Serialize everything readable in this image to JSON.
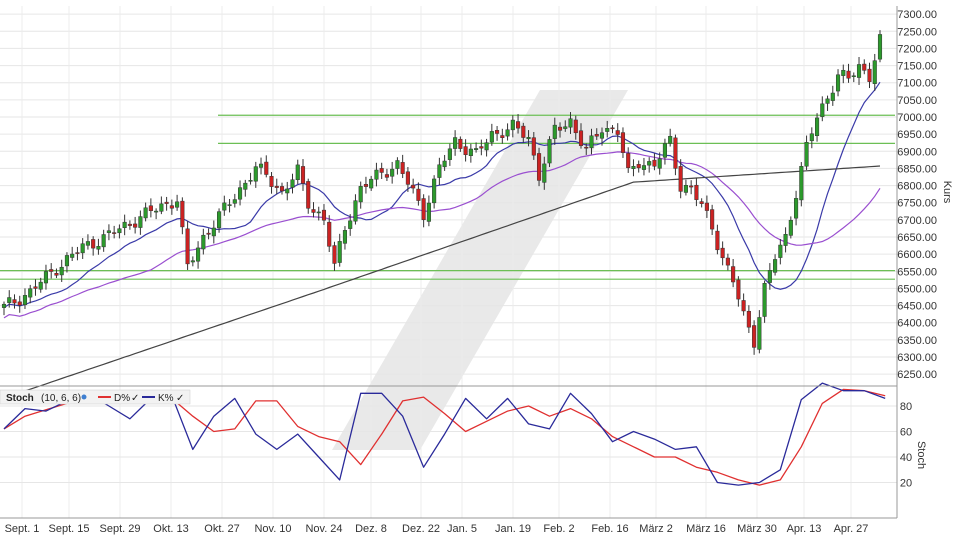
{
  "chart_data": [
    {
      "type": "candlestick",
      "ylabel": "Kurs",
      "ylim": [
        6200,
        7330
      ],
      "yticks": [
        6250,
        6300,
        6350,
        6400,
        6450,
        6500,
        6550,
        6600,
        6650,
        6700,
        6750,
        6800,
        6850,
        6900,
        6950,
        7000,
        7050,
        7100,
        7150,
        7200,
        7250,
        7300
      ],
      "ytick_labels": [
        "6250.00",
        "6300.00",
        "6350.00",
        "6400.00",
        "6450.00",
        "6500.00",
        "6550.00",
        "6600.00",
        "6650.00",
        "6700.00",
        "6750.00",
        "6800.00",
        "6850.00",
        "6900.00",
        "6950.00",
        "7000.00",
        "7050.00",
        "7100.00",
        "7150.00",
        "7200.00",
        "7250.00",
        "7300.00"
      ],
      "xlabels": [
        "Sept. 1",
        "Sept. 15",
        "Sept. 29",
        "Okt. 13",
        "Okt. 27",
        "Nov. 10",
        "Nov. 24",
        "Dez. 8",
        "Dez. 22",
        "Jan. 5",
        "Jan. 19",
        "Feb. 2",
        "Feb. 16",
        "März 2",
        "März 16",
        "März 30",
        "Apr. 13",
        "Apr. 27"
      ],
      "horizontal_lines": [
        7005,
        6923,
        6552,
        6527
      ],
      "close_keypoints": [
        [
          0,
          6445
        ],
        [
          5,
          6490
        ],
        [
          10,
          6560
        ],
        [
          15,
          6620
        ],
        [
          20,
          6655
        ],
        [
          25,
          6700
        ],
        [
          30,
          6740
        ],
        [
          33,
          6760
        ],
        [
          35,
          6560
        ],
        [
          38,
          6650
        ],
        [
          42,
          6730
        ],
        [
          46,
          6810
        ],
        [
          48,
          6850
        ],
        [
          50,
          6830
        ],
        [
          53,
          6780
        ],
        [
          56,
          6840
        ],
        [
          58,
          6750
        ],
        [
          61,
          6700
        ],
        [
          63,
          6560
        ],
        [
          65,
          6680
        ],
        [
          68,
          6790
        ],
        [
          72,
          6840
        ],
        [
          75,
          6860
        ],
        [
          78,
          6780
        ],
        [
          80,
          6720
        ],
        [
          83,
          6850
        ],
        [
          86,
          6930
        ],
        [
          90,
          6890
        ],
        [
          93,
          6950
        ],
        [
          97,
          6970
        ],
        [
          100,
          6940
        ],
        [
          102,
          6830
        ],
        [
          105,
          6960
        ],
        [
          108,
          6990
        ],
        [
          111,
          6900
        ],
        [
          114,
          6970
        ],
        [
          117,
          6960
        ],
        [
          119,
          6830
        ],
        [
          121,
          6870
        ],
        [
          124,
          6860
        ],
        [
          127,
          6930
        ],
        [
          129,
          6800
        ],
        [
          131,
          6790
        ],
        [
          133,
          6740
        ],
        [
          135,
          6680
        ],
        [
          137,
          6590
        ],
        [
          139,
          6520
        ],
        [
          141,
          6420
        ],
        [
          143,
          6350
        ],
        [
          145,
          6500
        ],
        [
          147,
          6590
        ],
        [
          149,
          6650
        ],
        [
          151,
          6780
        ],
        [
          153,
          6910
        ],
        [
          155,
          7000
        ],
        [
          157,
          7060
        ],
        [
          159,
          7120
        ],
        [
          161,
          7110
        ],
        [
          163,
          7150
        ],
        [
          165,
          7120
        ],
        [
          167,
          7220
        ]
      ],
      "moving_averages": [
        {
          "color": "#3a3aa8",
          "period": 20
        },
        {
          "color": "#9a4fd0",
          "period": 50
        },
        {
          "color": "#444444",
          "period": 200
        }
      ],
      "watermark": "slash-logo"
    },
    {
      "type": "line",
      "ylabel": "Stoch",
      "ylim": [
        0,
        100
      ],
      "yticks": [
        20,
        40,
        60,
        80
      ],
      "legend": [
        {
          "label": "Stoch",
          "bold": true
        },
        {
          "label": "(10, 6, 6)"
        },
        {
          "label": "D%",
          "color": "#e03030"
        },
        {
          "label": "K%",
          "color": "#2a2a9a"
        }
      ],
      "series": [
        {
          "name": "D%",
          "color": "#e03030",
          "values": [
            [
              0,
              62
            ],
            [
              4,
              72
            ],
            [
              8,
              77
            ],
            [
              12,
              82
            ],
            [
              16,
              88
            ],
            [
              20,
              92
            ],
            [
              24,
              84
            ],
            [
              28,
              84
            ],
            [
              32,
              86
            ],
            [
              36,
              72
            ],
            [
              40,
              60
            ],
            [
              44,
              62
            ],
            [
              48,
              84
            ],
            [
              52,
              84
            ],
            [
              56,
              64
            ],
            [
              60,
              56
            ],
            [
              64,
              52
            ],
            [
              68,
              34
            ],
            [
              72,
              58
            ],
            [
              76,
              84
            ],
            [
              80,
              87
            ],
            [
              84,
              74
            ],
            [
              88,
              60
            ],
            [
              92,
              68
            ],
            [
              96,
              76
            ],
            [
              100,
              80
            ],
            [
              104,
              72
            ],
            [
              108,
              78
            ],
            [
              112,
              70
            ],
            [
              116,
              56
            ],
            [
              120,
              48
            ],
            [
              124,
              40
            ],
            [
              128,
              40
            ],
            [
              132,
              32
            ],
            [
              136,
              28
            ],
            [
              140,
              22
            ],
            [
              144,
              18
            ],
            [
              148,
              22
            ],
            [
              152,
              48
            ],
            [
              156,
              82
            ],
            [
              160,
              93
            ],
            [
              164,
              92
            ],
            [
              168,
              88
            ]
          ]
        },
        {
          "name": "K%",
          "color": "#2a2a9a",
          "values": [
            [
              0,
              62
            ],
            [
              4,
              78
            ],
            [
              8,
              76
            ],
            [
              12,
              84
            ],
            [
              16,
              90
            ],
            [
              20,
              80
            ],
            [
              24,
              70
            ],
            [
              28,
              86
            ],
            [
              32,
              88
            ],
            [
              36,
              46
            ],
            [
              40,
              72
            ],
            [
              44,
              86
            ],
            [
              48,
              58
            ],
            [
              52,
              46
            ],
            [
              56,
              58
            ],
            [
              60,
              40
            ],
            [
              64,
              22
            ],
            [
              68,
              90
            ],
            [
              72,
              90
            ],
            [
              76,
              72
            ],
            [
              80,
              32
            ],
            [
              84,
              58
            ],
            [
              88,
              86
            ],
            [
              92,
              70
            ],
            [
              96,
              86
            ],
            [
              100,
              66
            ],
            [
              104,
              62
            ],
            [
              108,
              90
            ],
            [
              112,
              74
            ],
            [
              116,
              52
            ],
            [
              120,
              60
            ],
            [
              124,
              54
            ],
            [
              128,
              46
            ],
            [
              132,
              48
            ],
            [
              136,
              20
            ],
            [
              140,
              18
            ],
            [
              144,
              20
            ],
            [
              148,
              30
            ],
            [
              152,
              85
            ],
            [
              156,
              98
            ],
            [
              160,
              92
            ],
            [
              164,
              92
            ],
            [
              168,
              86
            ]
          ]
        }
      ]
    }
  ]
}
